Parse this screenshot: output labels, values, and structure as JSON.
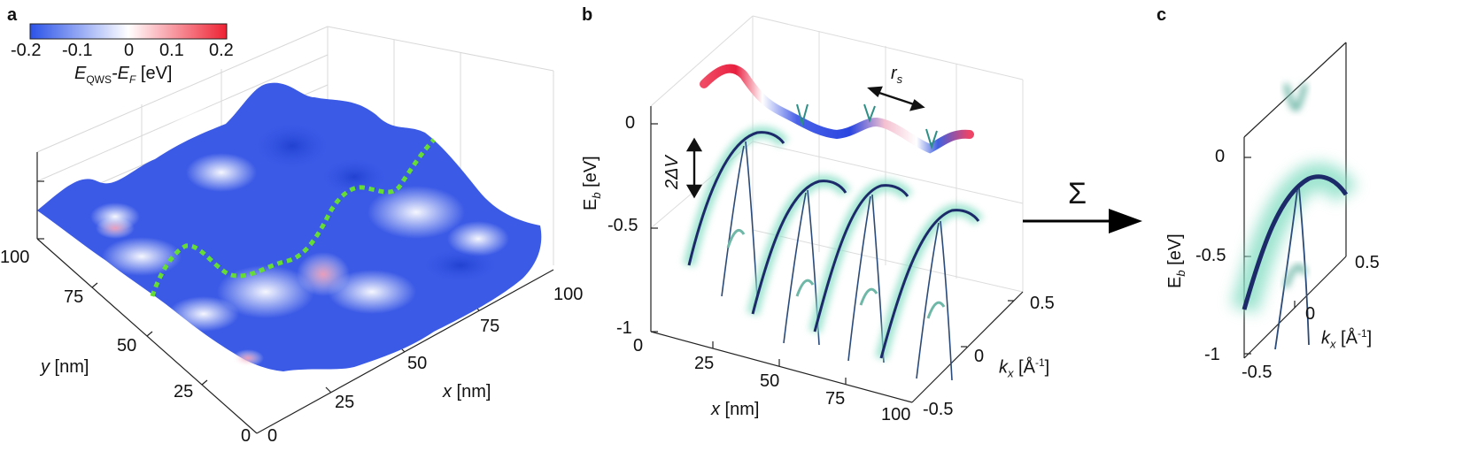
{
  "panels": {
    "a": {
      "letter": "a",
      "colorbar": {
        "ticks": [
          "-0.2",
          "-0.1",
          "0",
          "0.1",
          "0.2"
        ],
        "label_main": "E",
        "label_sub1": "QWS",
        "label_mid": "-E",
        "label_sub2": "F",
        "label_unit": " [eV]",
        "colors": {
          "low": "#2a52e8",
          "mid": "#ffffff",
          "high": "#ee2233"
        }
      },
      "y_ticks": [
        "100",
        "75",
        "50",
        "25",
        "0"
      ],
      "y_label_var": "y",
      "y_label_unit": " [nm]",
      "x_ticks": [
        "0",
        "25",
        "50",
        "75",
        "100"
      ],
      "x_label_var": "x",
      "x_label_unit": " [nm]",
      "path_color": "#66dd33"
    },
    "b": {
      "letter": "b",
      "eb_ticks": [
        "0",
        "-0.5",
        "-1"
      ],
      "eb_label": "E",
      "eb_sub": "b",
      "eb_unit": " [eV]",
      "x_ticks": [
        "0",
        "25",
        "50",
        "75",
        "100"
      ],
      "x_label_var": "x",
      "x_label_unit": " [nm]",
      "kx_ticks": [
        "0.5",
        "0",
        "-0.5"
      ],
      "kx_label": "k",
      "kx_sub": "x",
      "kx_unit": " [Å",
      "kx_exp": "-1",
      "kx_close": "]",
      "gap_label": "2ΔV",
      "rs_label": "r",
      "rs_sub": "s"
    },
    "c": {
      "letter": "c",
      "sum_symbol": "Σ",
      "eb_ticks": [
        "0",
        "-0.5",
        "-1"
      ],
      "eb_label": "E",
      "eb_sub": "b",
      "eb_unit": " [eV]",
      "kx_ticks": [
        "0.5",
        "0",
        "-0.5"
      ],
      "kx_label": "k",
      "kx_sub": "x",
      "kx_unit": " [Å",
      "kx_exp": "-1",
      "kx_close": "]"
    }
  }
}
